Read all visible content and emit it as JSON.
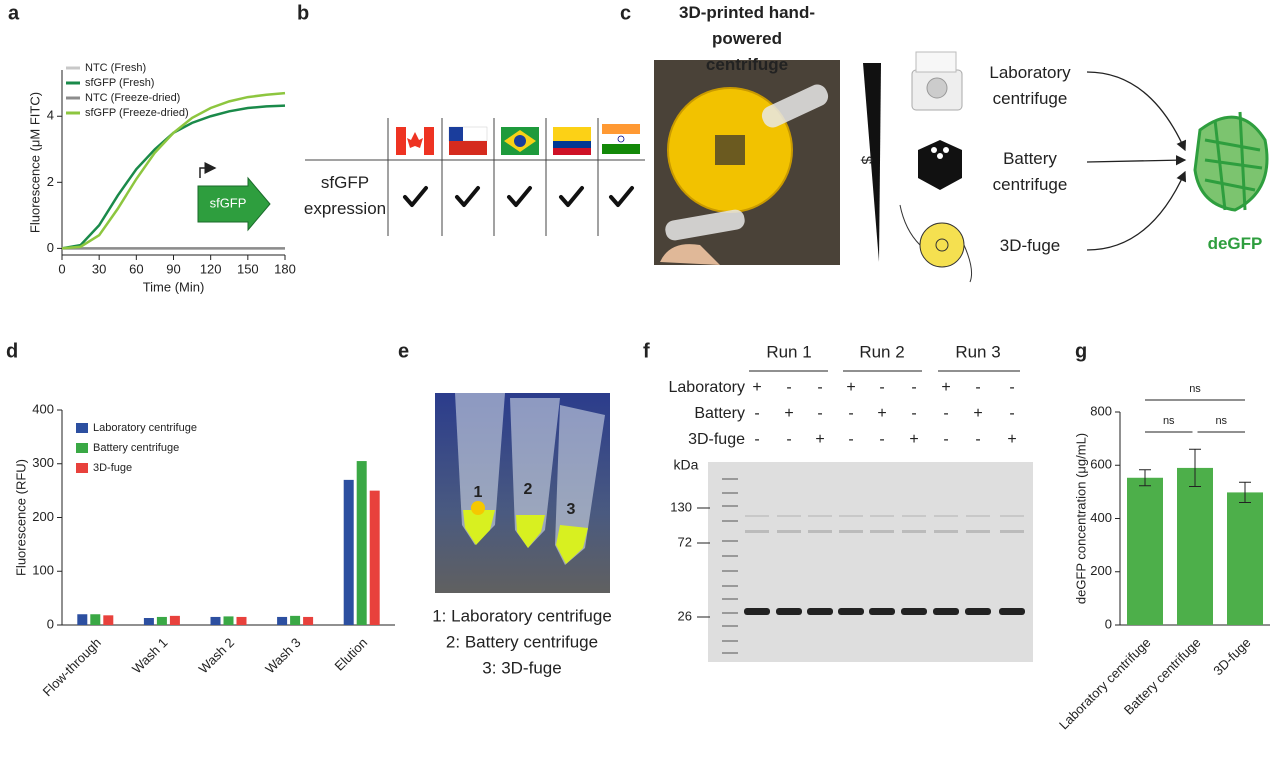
{
  "panel_labels": [
    "a",
    "b",
    "c",
    "d",
    "e",
    "f",
    "g"
  ],
  "chart_data": [
    {
      "type": "line",
      "x": [
        0,
        15,
        30,
        45,
        60,
        75,
        90,
        105,
        120,
        135,
        150,
        165,
        180
      ],
      "xlim": [
        0,
        180
      ],
      "xticks": [
        0,
        30,
        60,
        90,
        120,
        150,
        180
      ],
      "ylim": [
        -0.2,
        5.4
      ],
      "yticks": [
        0,
        2,
        4
      ],
      "xlabel": "Time (Min)",
      "ylabel": "Fluorescence (μM FITC)",
      "legend": "upper left",
      "annotation": "sfGFP",
      "series": [
        {
          "name": "NTC (Fresh)",
          "color": "#c8c8c8",
          "values": [
            0,
            0,
            0,
            0,
            0,
            0,
            0,
            0,
            0,
            0,
            0,
            0,
            0
          ]
        },
        {
          "name": "sfGFP (Fresh)",
          "color": "#1a8a4a",
          "values": [
            0,
            0.1,
            0.7,
            1.6,
            2.4,
            3.0,
            3.5,
            3.8,
            4.0,
            4.15,
            4.25,
            4.3,
            4.32
          ]
        },
        {
          "name": "NTC (Freeze-dried)",
          "color": "#8c8c8c",
          "values": [
            0,
            0,
            0,
            0,
            0,
            0,
            0,
            0,
            0,
            0,
            0,
            0,
            0
          ]
        },
        {
          "name": "sfGFP (Freeze-dried)",
          "color": "#8dc63f",
          "values": [
            0,
            0.05,
            0.4,
            1.2,
            2.1,
            2.9,
            3.5,
            3.95,
            4.25,
            4.45,
            4.58,
            4.65,
            4.7
          ]
        }
      ]
    },
    {
      "type": "bar",
      "categories": [
        "Flow-through",
        "Wash 1",
        "Wash 2",
        "Wash 3",
        "Elution"
      ],
      "ylim": [
        0,
        400
      ],
      "yticks": [
        0,
        100,
        200,
        300,
        400
      ],
      "ylabel": "Fluorescence (RFU)",
      "legend": "upper left",
      "series": [
        {
          "name": "Laboratory centrifuge",
          "color": "#2c4fa0",
          "values": [
            20,
            13,
            15,
            15,
            270
          ]
        },
        {
          "name": "Battery centrifuge",
          "color": "#3aa845",
          "values": [
            20,
            15,
            16,
            17,
            305
          ]
        },
        {
          "name": "3D-fuge",
          "color": "#e8413c",
          "values": [
            18,
            17,
            15,
            15,
            250
          ]
        }
      ]
    },
    {
      "type": "bar",
      "categories": [
        "Laboratory centrifuge",
        "Battery centrifuge",
        "3D-fuge"
      ],
      "values": [
        553,
        590,
        498
      ],
      "errors": [
        30,
        70,
        38
      ],
      "color": "#4daf4a",
      "ylim": [
        0,
        800
      ],
      "yticks": [
        0,
        200,
        400,
        600,
        800
      ],
      "ylabel": "deGFP concentration (μg/mL)",
      "annotations": [
        "ns",
        "ns",
        "ns"
      ]
    }
  ],
  "panel_b": {
    "row_label": "sfGFP expression"
  },
  "panel_c": {
    "title": "3D-printed hand-powered centrifuge",
    "cost_symbol": "$",
    "methods": [
      "Laboratory centrifuge",
      "Battery centrifuge",
      "3D-fuge"
    ],
    "product": "deGFP"
  },
  "panel_e": {
    "tube_labels": [
      "1",
      "2",
      "3"
    ],
    "legend": [
      "1: Laboratory centrifuge",
      "2: Battery centrifuge",
      "3: 3D-fuge"
    ]
  },
  "panel_f": {
    "runs": [
      "Run 1",
      "Run 2",
      "Run 3"
    ],
    "conditions": [
      {
        "name": "Laboratory",
        "signs": [
          "+",
          "-",
          "-",
          "+",
          "-",
          "-",
          "+",
          "-",
          "-"
        ]
      },
      {
        "name": "Battery",
        "signs": [
          "-",
          "+",
          "-",
          "-",
          "+",
          "-",
          "-",
          "+",
          "-"
        ]
      },
      {
        "name": "3D-fuge",
        "signs": [
          "-",
          "-",
          "+",
          "-",
          "-",
          "+",
          "-",
          "-",
          "+"
        ]
      }
    ],
    "unit": "kDa",
    "markers": [
      130,
      72,
      26
    ]
  }
}
